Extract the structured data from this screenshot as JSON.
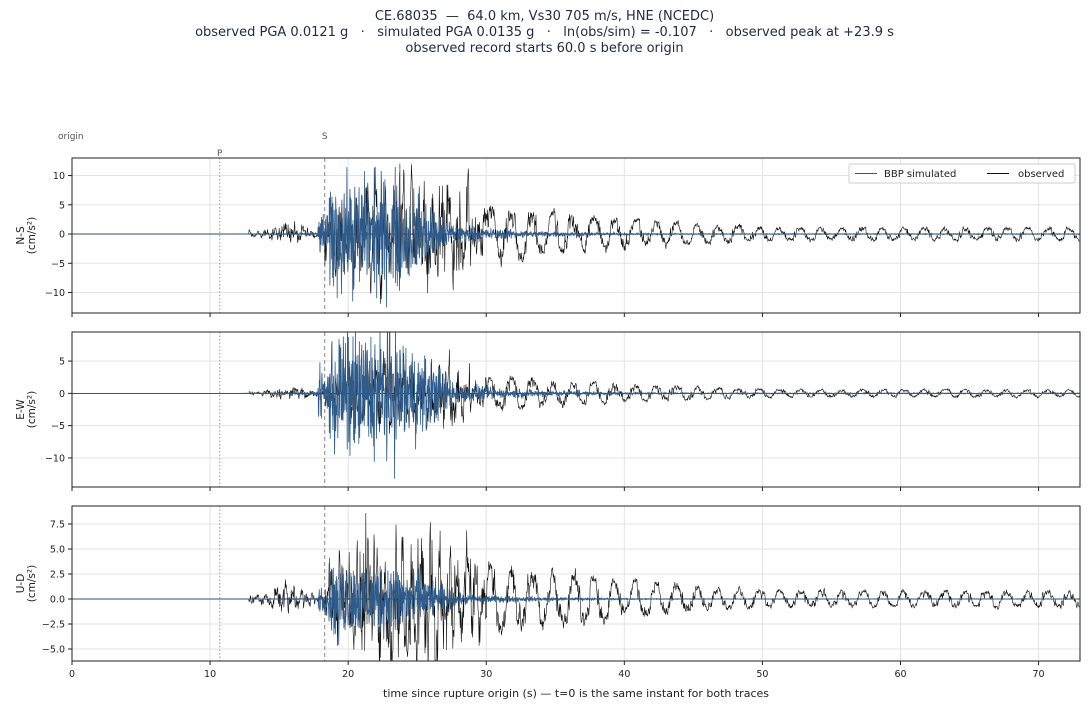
{
  "title": {
    "line1": "CE.68035  —  64.0 km, Vs30 705 m/s, HNE (NCEDC)",
    "line2": "observed PGA 0.0121 g   ·   simulated PGA 0.0135 g   ·   ln(obs/sim) = -0.107   ·   observed peak at +23.9 s",
    "line3": "observed record starts 60.0 s before origin"
  },
  "markers": {
    "origin_label": "origin",
    "p_label": "P",
    "s_label": "S",
    "p_time": 10.7,
    "s_time": 18.3
  },
  "colors": {
    "simulated": "#2f5b8a",
    "observed": "#111111",
    "grid": "#e3e3e3",
    "marker_p": "#9a9a9a",
    "marker_s": "#8a8a8a"
  },
  "chart_data": {
    "type": "line",
    "xlabel": "time since rupture origin (s)   —   t=0 is the same instant for both traces",
    "xlim": [
      0,
      73
    ],
    "xticks": [
      0,
      10,
      20,
      30,
      40,
      50,
      60,
      70
    ],
    "legend": {
      "placement": "top-right",
      "entries": [
        "BBP simulated",
        "observed"
      ]
    },
    "panels": [
      {
        "ylabel": "N-S",
        "yunit": "(cm/s²)",
        "ylim": [
          -13.5,
          13
        ],
        "yticks": [
          -10,
          -5,
          0,
          5,
          10
        ],
        "ytick_labels": [
          "−10",
          "−5",
          "0",
          "5",
          "10"
        ],
        "observed_peak": 12.0,
        "simulated_peak": -12.5
      },
      {
        "ylabel": "E-W",
        "yunit": "(cm/s²)",
        "ylim": [
          -14.5,
          9.5
        ],
        "yticks": [
          -10,
          -5,
          0,
          5
        ],
        "ytick_labels": [
          "−10",
          "−5",
          "0",
          "5"
        ],
        "observed_peak": 6.8,
        "simulated_peak": -13.2
      },
      {
        "ylabel": "U-D",
        "yunit": "(cm/s²)",
        "ylim": [
          -6.2,
          9.3
        ],
        "yticks": [
          -5.0,
          -2.5,
          0.0,
          2.5,
          5.0,
          7.5
        ],
        "ytick_labels": [
          "−5.0",
          "−2.5",
          "0.0",
          "2.5",
          "5.0",
          "7.5"
        ],
        "observed_peak": 8.6,
        "simulated_peak": -4.6
      }
    ],
    "grid": true
  }
}
